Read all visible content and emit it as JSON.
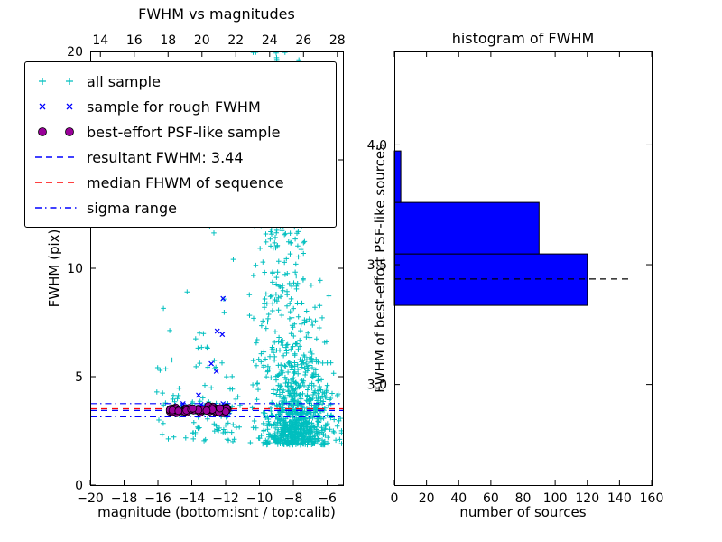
{
  "figure": {
    "background": "#ffffff"
  },
  "chart_data": [
    {
      "type": "scatter",
      "title": "FWHM vs magnitudes",
      "xlabel": "magnitude (bottom:isnt / top:calib)",
      "ylabel": "FWHM (pix)",
      "xlim": [
        -20,
        -5.07
      ],
      "ylim": [
        0,
        20
      ],
      "xticks_bottom": {
        "values": [
          -20,
          -18,
          -16,
          -14,
          -12,
          -10,
          -8,
          -6
        ],
        "labels": [
          "−20",
          "−18",
          "−16",
          "−14",
          "−12",
          "−10",
          "−8",
          "−6"
        ]
      },
      "xticks_top": {
        "values": [
          14,
          16,
          18,
          20,
          22,
          24,
          26,
          28
        ],
        "labels": [
          "14",
          "16",
          "18",
          "20",
          "22",
          "24",
          "26",
          "28"
        ],
        "offset_from_bottom": 33.4
      },
      "yticks": {
        "values": [
          0,
          5,
          10,
          15,
          20
        ],
        "labels": [
          "0",
          "5",
          "10",
          "15",
          "20"
        ]
      },
      "grid": false,
      "legend": {
        "position": "upper left",
        "items": [
          {
            "label": "all sample",
            "marker": "plus",
            "color": "#00bfbf"
          },
          {
            "label": "sample for rough FWHM",
            "marker": "x",
            "color": "#0000ff"
          },
          {
            "label": "best-effort PSF-like sample",
            "marker": "circle",
            "color": "#990099"
          },
          {
            "label": "resultant FWHM: 3.44",
            "marker": "dashed-line",
            "color": "#0000ff"
          },
          {
            "label": "median FHWM of sequence",
            "marker": "dashed-line",
            "color": "#ff0000"
          },
          {
            "label": "sigma range",
            "marker": "dashdot-line",
            "color": "#0000ff"
          }
        ]
      },
      "series": [
        {
          "name": "all sample",
          "marker": "plus",
          "color": "#00bfbf",
          "clusters": [
            {
              "count": 850,
              "mag": {
                "dist": "gauss",
                "mean": -7.8,
                "sd": 1.05,
                "clamp": [
                  -11.6,
                  -5.15
                ]
              },
              "fwhm": {
                "dist": "exp",
                "min": 1.85,
                "scale": 1.7,
                "max": 13
              }
            },
            {
              "count": 260,
              "mag": {
                "dist": "gauss",
                "mean": -8.7,
                "sd": 0.85,
                "clamp": [
                  -10.8,
                  -6.2
                ]
              },
              "fwhm": {
                "dist": "uniform",
                "min": 4.5,
                "max": 20
              }
            },
            {
              "count": 100,
              "mag": {
                "dist": "uniform",
                "min": -16.3,
                "max": -11.0
              },
              "fwhm": {
                "dist": "exp",
                "min": 2.0,
                "scale": 2.6,
                "max": 13
              }
            },
            {
              "count": 60,
              "mag": {
                "dist": "uniform",
                "min": -15.4,
                "max": -11.5
              },
              "fwhm": {
                "dist": "gauss",
                "mean": 3.5,
                "sd": 0.18
              }
            }
          ]
        },
        {
          "name": "sample for rough FWHM",
          "marker": "x",
          "color": "#0000ff",
          "clusters": [
            {
              "count": 42,
              "mag": {
                "dist": "uniform",
                "min": -14.6,
                "max": -11.8
              },
              "fwhm": {
                "dist": "gauss",
                "mean": 3.5,
                "sd": 0.12
              }
            }
          ],
          "points": [
            [
              -12.15,
              8.6
            ],
            [
              -12.5,
              7.1
            ],
            [
              -12.2,
              6.95
            ],
            [
              -12.85,
              5.6
            ],
            [
              -12.55,
              5.25
            ],
            [
              -13.6,
              4.15
            ]
          ]
        },
        {
          "name": "best-effort PSF-like sample",
          "marker": "circle",
          "color": "#990099",
          "clusters": [
            {
              "count": 75,
              "mag": {
                "dist": "uniform",
                "min": -15.3,
                "max": -11.85
              },
              "fwhm": {
                "dist": "gauss",
                "mean": 3.47,
                "sd": 0.06
              }
            }
          ]
        }
      ],
      "hlines": [
        {
          "y": 3.44,
          "style": "dashed",
          "color": "#0000ff",
          "name": "resultant-fwhm-line"
        },
        {
          "y": 3.52,
          "style": "dashed",
          "color": "#ff0000",
          "name": "median-fwhm-line"
        },
        {
          "y": 3.76,
          "style": "dashdot",
          "color": "#0000ff",
          "name": "sigma-upper-line"
        },
        {
          "y": 3.15,
          "style": "dashdot",
          "color": "#0000ff",
          "name": "sigma-lower-line"
        }
      ]
    },
    {
      "type": "bar",
      "orientation": "horizontal",
      "title": "histogram of FWHM",
      "xlabel": "number of sources",
      "ylabel": "FWHM of best-effort PSF-like sources",
      "xlim": [
        0,
        160
      ],
      "ylim": [
        2.58,
        4.39
      ],
      "xticks": {
        "values": [
          0,
          20,
          40,
          60,
          80,
          100,
          120,
          140,
          160
        ],
        "labels": [
          "0",
          "20",
          "40",
          "60",
          "80",
          "100",
          "120",
          "140",
          "160"
        ]
      },
      "yticks": {
        "values": [
          3.0,
          3.5,
          4.0
        ],
        "labels": [
          "3.0",
          "3.5",
          "4.0"
        ]
      },
      "bin_edges": [
        3.33,
        3.545,
        3.76,
        3.975
      ],
      "counts": [
        120,
        90,
        4
      ],
      "bar_color": "#0000ff",
      "bar_edge_color": "#000000",
      "median_line": {
        "y": 3.44,
        "x_end": 146,
        "style": "dashed",
        "color": "#000000"
      }
    }
  ]
}
